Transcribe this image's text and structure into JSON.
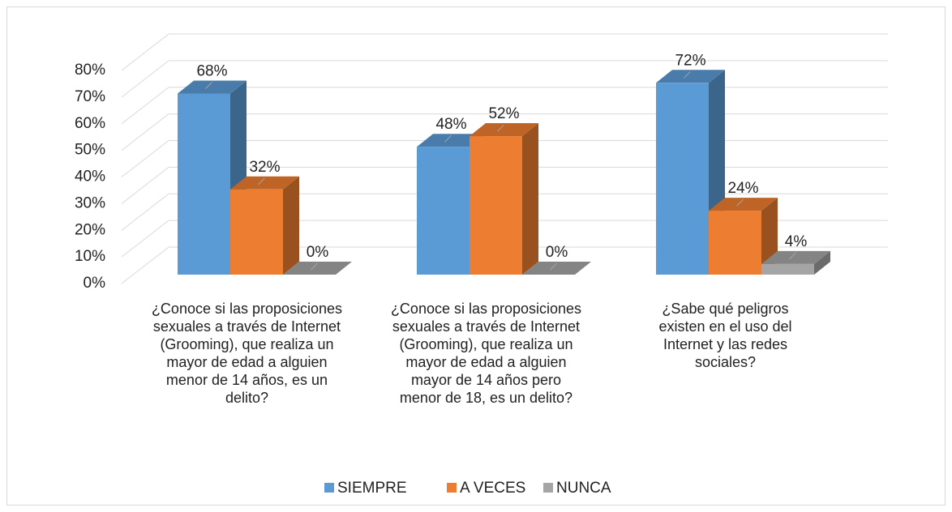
{
  "chart_data": {
    "type": "bar3d",
    "categories": [
      "¿Conoce si las proposiciones sexuales a través de Internet (Grooming), que realiza un mayor de edad a alguien menor de 14 años, es un delito?",
      "¿Conoce si las proposiciones sexuales a través de Internet (Grooming), que realiza un mayor de edad a alguien mayor de 14 años pero menor de 18, es un delito?",
      "¿Sabe qué peligros existen en el uso del Internet y las redes sociales?"
    ],
    "series": [
      {
        "name": "SIEMPRE",
        "color": "#5b9bd5",
        "values": [
          68,
          48,
          72
        ],
        "value_labels": [
          "68%",
          "48%",
          "72%"
        ]
      },
      {
        "name": "A VECES",
        "color": "#ed7d31",
        "values": [
          32,
          52,
          24
        ],
        "value_labels": [
          "32%",
          "52%",
          "24%"
        ]
      },
      {
        "name": "NUNCA",
        "color": "#a5a5a5",
        "values": [
          0,
          0,
          4
        ],
        "value_labels": [
          "0%",
          "0%",
          "4%"
        ]
      }
    ],
    "ylim": [
      0,
      80
    ],
    "yticks": [
      {
        "value": 0,
        "label": "0%"
      },
      {
        "value": 10,
        "label": "10%"
      },
      {
        "value": 20,
        "label": "20%"
      },
      {
        "value": 30,
        "label": "30%"
      },
      {
        "value": 40,
        "label": "40%"
      },
      {
        "value": 50,
        "label": "50%"
      },
      {
        "value": 60,
        "label": "60%"
      },
      {
        "value": 70,
        "label": "70%"
      },
      {
        "value": 80,
        "label": "80%"
      }
    ],
    "grid": true,
    "legend": "bottom"
  }
}
